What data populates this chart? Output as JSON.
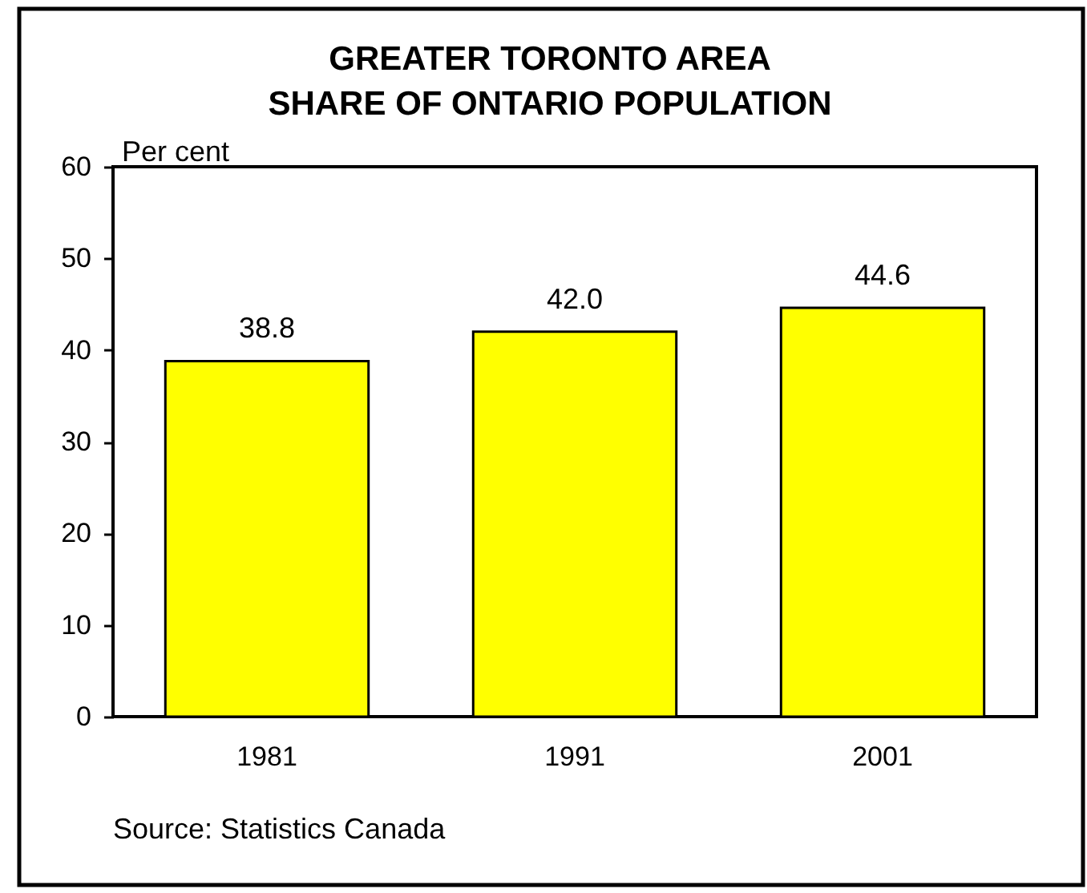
{
  "chart_data": {
    "type": "bar",
    "title": "GREATER TORONTO AREA\nSHARE OF ONTARIO POPULATION",
    "ylabel": "Per cent",
    "categories": [
      "1981",
      "1991",
      "2001"
    ],
    "values": [
      38.8,
      42.0,
      44.6
    ],
    "value_labels": [
      "38.8",
      "42.0",
      "44.6"
    ],
    "color": "#ffff00",
    "ylim": [
      0,
      60
    ],
    "yticks": [
      0,
      10,
      20,
      30,
      40,
      50,
      60
    ],
    "annotations": [
      "Source: Statistics Canada"
    ]
  }
}
